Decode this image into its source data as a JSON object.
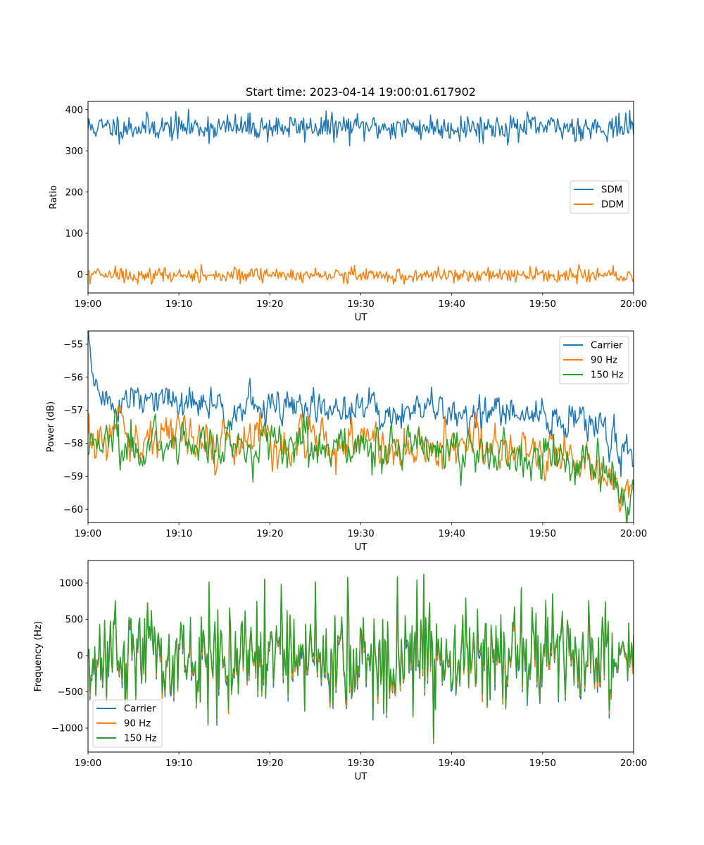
{
  "figure": {
    "title": "Start time: 2023-04-14 19:00:01.617902"
  },
  "colors": {
    "blue": "#1f77b4",
    "orange": "#ff7f0e",
    "green": "#2ca02c"
  },
  "chart_data": [
    {
      "type": "line",
      "title": "Start time: 2023-04-14 19:00:01.617902",
      "xlabel": "UT",
      "ylabel": "Ratio",
      "x_range": [
        "19:00",
        "20:00"
      ],
      "ylim": [
        -45,
        420
      ],
      "x_ticks": [
        "19:00",
        "19:10",
        "19:20",
        "19:30",
        "19:40",
        "19:50",
        "20:00"
      ],
      "y_ticks": [
        0,
        100,
        200,
        300,
        400
      ],
      "legend_position": "center-right",
      "grid": false,
      "series": [
        {
          "name": "SDM",
          "color": "#1f77b4",
          "mean": 357,
          "spread": 16,
          "min": 312,
          "max": 404
        },
        {
          "name": "DDM",
          "color": "#ff7f0e",
          "mean": -2,
          "spread": 9,
          "min": -24,
          "max": 24
        }
      ]
    },
    {
      "type": "line",
      "xlabel": "UT",
      "ylabel": "Power (dB)",
      "x_range": [
        "19:00",
        "20:00"
      ],
      "ylim": [
        -60.4,
        -54.6
      ],
      "x_ticks": [
        "19:00",
        "19:10",
        "19:20",
        "19:30",
        "19:40",
        "19:50",
        "20:00"
      ],
      "y_ticks": [
        -55,
        -56,
        -57,
        -58,
        -59,
        -60
      ],
      "legend_position": "upper-right",
      "grid": false,
      "series": [
        {
          "name": "Carrier",
          "color": "#1f77b4",
          "start": -54.7,
          "trend": [
            [
              0,
              -56.7
            ],
            [
              15,
              -56.9
            ],
            [
              30,
              -57.0
            ],
            [
              45,
              -57.1
            ],
            [
              55,
              -57.4
            ],
            [
              60,
              -58.3
            ]
          ],
          "spread": 0.25
        },
        {
          "name": "90 Hz",
          "color": "#ff7f0e",
          "trend": [
            [
              0,
              -57.7
            ],
            [
              15,
              -57.9
            ],
            [
              30,
              -58.0
            ],
            [
              45,
              -58.2
            ],
            [
              55,
              -58.5
            ],
            [
              60,
              -59.6
            ]
          ],
          "spread": 0.3
        },
        {
          "name": "150 Hz",
          "color": "#2ca02c",
          "trend": [
            [
              0,
              -58.0
            ],
            [
              15,
              -58.0
            ],
            [
              30,
              -58.1
            ],
            [
              45,
              -58.2
            ],
            [
              55,
              -58.6
            ],
            [
              60,
              -59.6
            ]
          ],
          "spread": 0.3
        }
      ]
    },
    {
      "type": "line",
      "xlabel": "UT",
      "ylabel": "Frequency (Hz)",
      "x_range": [
        "19:00",
        "20:00"
      ],
      "ylim": [
        -1330,
        1310
      ],
      "x_ticks": [
        "19:00",
        "19:10",
        "19:20",
        "19:30",
        "19:40",
        "19:50",
        "20:00"
      ],
      "y_ticks": [
        1000,
        500,
        0,
        -500,
        -1000
      ],
      "legend_position": "lower-left",
      "grid": false,
      "series": [
        {
          "name": "Carrier",
          "color": "#1f77b4",
          "offset": -40,
          "spread": 380,
          "min": -1210,
          "max": 1180
        },
        {
          "name": "90 Hz",
          "color": "#ff7f0e",
          "offset": -10,
          "spread": 380,
          "min": -1180,
          "max": 1190
        },
        {
          "name": "150 Hz",
          "color": "#2ca02c",
          "offset": 20,
          "spread": 380,
          "min": -1150,
          "max": 1200
        }
      ]
    }
  ]
}
